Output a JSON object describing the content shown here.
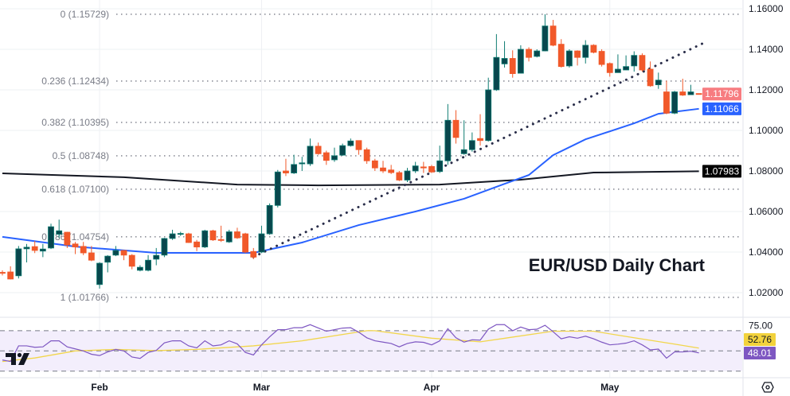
{
  "chart_data": {
    "type": "candlestick",
    "title": "EUR/USD Daily Chart",
    "price_axis": {
      "ticks": [
        "1.16000",
        "1.14000",
        "1.12000",
        "1.10000",
        "1.08000",
        "1.06000",
        "1.04000",
        "1.02000"
      ],
      "ylim": [
        1.0145,
        1.1645
      ],
      "grid": true
    },
    "x_axis": {
      "ticks": [
        {
          "label": "Feb",
          "bar": 12
        },
        {
          "label": "Mar",
          "bar": 32
        },
        {
          "label": "Apr",
          "bar": 53
        },
        {
          "label": "May",
          "bar": 75
        }
      ]
    },
    "colors": {
      "up": "#08474d",
      "up_border": "#0e7c72",
      "down": "#f1592a",
      "ma50": "#2962ff",
      "ma200": "#131722",
      "trend": "#2a2e4a",
      "rsi": "#7e57c2",
      "rsi_ma": "#f2d64b",
      "fib": "#787b86"
    },
    "candles": [
      [
        1.03,
        1.031,
        1.0285,
        1.0298
      ],
      [
        1.0302,
        1.033,
        1.0265,
        1.0267
      ],
      [
        1.0283,
        1.043,
        1.027,
        1.0416
      ],
      [
        1.0416,
        1.044,
        1.0349,
        1.0424
      ],
      [
        1.0427,
        1.0455,
        1.0395,
        1.0408
      ],
      [
        1.0405,
        1.044,
        1.0375,
        1.0415
      ],
      [
        1.042,
        1.054,
        1.0415,
        1.0525
      ],
      [
        1.0488,
        1.056,
        1.047,
        1.0505
      ],
      [
        1.0498,
        1.05,
        1.042,
        1.0435
      ],
      [
        1.044,
        1.045,
        1.039,
        1.0425
      ],
      [
        1.0428,
        1.045,
        1.0385,
        1.0396
      ],
      [
        1.0396,
        1.043,
        1.0355,
        1.036
      ],
      [
        1.024,
        1.035,
        1.022,
        1.0345
      ],
      [
        1.035,
        1.0385,
        1.03,
        1.038
      ],
      [
        1.0385,
        1.043,
        1.038,
        1.0408
      ],
      [
        1.0408,
        1.041,
        1.036,
        1.0385
      ],
      [
        1.0384,
        1.039,
        1.0315,
        1.033
      ],
      [
        1.031,
        1.0335,
        1.0305,
        1.0325
      ],
      [
        1.031,
        1.0385,
        1.0305,
        1.036
      ],
      [
        1.0365,
        1.042,
        1.0335,
        1.0384
      ],
      [
        1.0385,
        1.047,
        1.0375,
        1.0467
      ],
      [
        1.0467,
        1.051,
        1.046,
        1.049
      ],
      [
        1.049,
        1.05,
        1.048,
        1.0492
      ],
      [
        1.049,
        1.0495,
        1.0445,
        1.0447
      ],
      [
        1.045,
        1.046,
        1.0405,
        1.0425
      ],
      [
        1.0425,
        1.051,
        1.042,
        1.0505
      ],
      [
        1.0505,
        1.051,
        1.0455,
        1.046
      ],
      [
        1.0462,
        1.053,
        1.045,
        1.0458
      ],
      [
        1.045,
        1.051,
        1.0445,
        1.05
      ],
      [
        1.05,
        1.052,
        1.0465,
        1.047
      ],
      [
        1.049,
        1.0495,
        1.0395,
        1.04
      ],
      [
        1.0403,
        1.042,
        1.0365,
        1.0375
      ],
      [
        1.04,
        1.053,
        1.0395,
        1.049
      ],
      [
        1.049,
        1.064,
        1.0485,
        1.063
      ],
      [
        1.063,
        1.0805,
        1.062,
        1.0795
      ],
      [
        1.08,
        1.086,
        1.0775,
        1.079
      ],
      [
        1.079,
        1.088,
        1.0785,
        1.0832
      ],
      [
        1.0835,
        1.087,
        1.08,
        1.084
      ],
      [
        1.0835,
        1.096,
        1.0825,
        1.0922
      ],
      [
        1.0922,
        1.094,
        1.088,
        1.0885
      ],
      [
        1.089,
        1.09,
        1.083,
        1.0852
      ],
      [
        1.0855,
        1.0915,
        1.0845,
        1.0875
      ],
      [
        1.0878,
        1.0935,
        1.0875,
        1.0925
      ],
      [
        1.0925,
        1.096,
        1.092,
        1.0948
      ],
      [
        1.095,
        1.095,
        1.088,
        1.0905
      ],
      [
        1.0905,
        1.0915,
        1.0835,
        1.085
      ],
      [
        1.085,
        1.086,
        1.08,
        1.0815
      ],
      [
        1.0815,
        1.085,
        1.079,
        1.08
      ],
      [
        1.0805,
        1.083,
        1.0785,
        1.0792
      ],
      [
        1.0792,
        1.08,
        1.075,
        1.0755
      ],
      [
        1.0755,
        1.0815,
        1.0745,
        1.08
      ],
      [
        1.08,
        1.0845,
        1.079,
        1.0825
      ],
      [
        1.082,
        1.0845,
        1.079,
        1.0815
      ],
      [
        1.0822,
        1.083,
        1.079,
        1.0795
      ],
      [
        1.0797,
        1.0925,
        1.079,
        1.085
      ],
      [
        1.085,
        1.113,
        1.083,
        1.105
      ],
      [
        1.105,
        1.11,
        1.0935,
        1.0965
      ],
      [
        1.0885,
        1.105,
        1.088,
        1.0905
      ],
      [
        1.0905,
        1.099,
        1.0895,
        1.095
      ],
      [
        1.096,
        1.108,
        1.0925,
        1.095
      ],
      [
        1.095,
        1.126,
        1.0945,
        1.12
      ],
      [
        1.12,
        1.1475,
        1.1195,
        1.136
      ],
      [
        1.1328,
        1.144,
        1.131,
        1.1355
      ],
      [
        1.1355,
        1.1395,
        1.126,
        1.128
      ],
      [
        1.1282,
        1.142,
        1.1282,
        1.14
      ],
      [
        1.14,
        1.141,
        1.134,
        1.136
      ],
      [
        1.1365,
        1.14,
        1.136,
        1.1392
      ],
      [
        1.1392,
        1.1573,
        1.139,
        1.1515
      ],
      [
        1.1515,
        1.1545,
        1.1415,
        1.142
      ],
      [
        1.1425,
        1.145,
        1.131,
        1.1315
      ],
      [
        1.1318,
        1.14,
        1.131,
        1.1392
      ],
      [
        1.1392,
        1.1395,
        1.132,
        1.136
      ],
      [
        1.136,
        1.1445,
        1.133,
        1.142
      ],
      [
        1.142,
        1.1425,
        1.138,
        1.1385
      ],
      [
        1.139,
        1.14,
        1.1315,
        1.1325
      ],
      [
        1.133,
        1.1335,
        1.1265,
        1.1285
      ],
      [
        1.1285,
        1.1375,
        1.1285,
        1.1302
      ],
      [
        1.1298,
        1.137,
        1.13,
        1.1315
      ],
      [
        1.1318,
        1.139,
        1.129,
        1.137
      ],
      [
        1.137,
        1.138,
        1.129,
        1.1298
      ],
      [
        1.1302,
        1.134,
        1.1215,
        1.122
      ],
      [
        1.1225,
        1.1285,
        1.1205,
        1.1248
      ],
      [
        1.119,
        1.1245,
        1.108,
        1.1085
      ],
      [
        1.1085,
        1.1195,
        1.108,
        1.119
      ],
      [
        1.119,
        1.1255,
        1.117,
        1.1174
      ],
      [
        1.1176,
        1.1225,
        1.1175,
        1.119
      ],
      [
        1.1182,
        1.1182,
        1.1178,
        1.11796
      ]
    ],
    "ma50": [
      [
        0,
        1.0475
      ],
      [
        9,
        1.0427
      ],
      [
        19,
        1.0396
      ],
      [
        27,
        1.0396
      ],
      [
        31,
        1.0396
      ],
      [
        37,
        1.0447
      ],
      [
        44,
        1.0533
      ],
      [
        51,
        1.06
      ],
      [
        57,
        1.0663
      ],
      [
        61,
        1.0722
      ],
      [
        65,
        1.078
      ],
      [
        68,
        1.0878
      ],
      [
        72,
        1.0956
      ],
      [
        78,
        1.1035
      ],
      [
        81,
        1.1082
      ],
      [
        86,
        1.11066
      ]
    ],
    "ma200": [
      [
        0,
        1.0788
      ],
      [
        15,
        1.0769
      ],
      [
        29,
        1.0733
      ],
      [
        39,
        1.0729
      ],
      [
        54,
        1.0733
      ],
      [
        64,
        1.0757
      ],
      [
        73,
        1.0792
      ],
      [
        86,
        1.07983
      ]
    ],
    "trendline": {
      "from": {
        "bar": 31,
        "price": 1.0376
      },
      "to": {
        "bar": 87,
        "price": 1.1439
      },
      "style": "dotted"
    },
    "fib_levels": [
      {
        "label": "0 (1.15729)",
        "price": 1.15729
      },
      {
        "label": "0.236 (1.12434)",
        "price": 1.12434
      },
      {
        "label": "0.382 (1.10395)",
        "price": 1.10395
      },
      {
        "label": "0.5 (1.08748)",
        "price": 1.08748
      },
      {
        "label": "0.618 (1.07100)",
        "price": 1.071
      },
      {
        "label": "0.786 (1.04754)",
        "price": 1.04754
      },
      {
        "label": "1 (1.01766)",
        "price": 1.01766
      }
    ],
    "price_badges": [
      {
        "label": "1.11796",
        "price": 1.11796,
        "color": "#f77c80"
      },
      {
        "label": "1.11066",
        "price": 1.11066,
        "color": "#2962ff"
      },
      {
        "label": "1.07983",
        "price": 1.07983,
        "color": "#000000"
      }
    ],
    "rsi": {
      "ylim": [
        25,
        80
      ],
      "levels": [
        70,
        50,
        30
      ],
      "tick_label": "75.00",
      "values": [
        41,
        39.5,
        55,
        55,
        53.6,
        54,
        60,
        60,
        54,
        52,
        50,
        46.7,
        45.4,
        49,
        51.5,
        50,
        44,
        42.6,
        48.5,
        50.5,
        58,
        60,
        60,
        55,
        53,
        60,
        55,
        56,
        60,
        57,
        48.5,
        46,
        56,
        64,
        71,
        71,
        73,
        73,
        76,
        72.7,
        69.5,
        71,
        72.6,
        73,
        68.5,
        63,
        60,
        58.7,
        57.4,
        54,
        57.4,
        59,
        58.5,
        56,
        60,
        72,
        63,
        58.7,
        61,
        60.7,
        71.5,
        76,
        76,
        70,
        73.6,
        71,
        71.5,
        75.4,
        69,
        62,
        64,
        62.6,
        64.6,
        62,
        58.7,
        56,
        56.7,
        57.7,
        60,
        56,
        51,
        51.8,
        42.8,
        49,
        49,
        49.7,
        48.01
      ],
      "ma": [
        [
          0,
          39.5
        ],
        [
          4,
          43
        ],
        [
          9,
          50
        ],
        [
          14,
          51.5
        ],
        [
          19,
          50.3
        ],
        [
          24,
          51.5
        ],
        [
          31,
          55
        ],
        [
          37,
          60
        ],
        [
          45,
          70
        ],
        [
          46,
          70
        ],
        [
          53,
          62.6
        ],
        [
          59,
          59
        ],
        [
          68,
          69.5
        ],
        [
          73,
          69.5
        ],
        [
          78,
          63
        ],
        [
          83,
          56.7
        ],
        [
          86,
          52.76
        ]
      ],
      "badges": [
        {
          "label": "52.76",
          "value": 52.76,
          "color": "#f2d23c",
          "text_color": "#131722"
        },
        {
          "label": "48.01",
          "value": 48.01,
          "color": "#7e57c2",
          "text_color": "#ffffff"
        }
      ]
    }
  },
  "logo": "TV",
  "settings_icon": "gear-icon"
}
